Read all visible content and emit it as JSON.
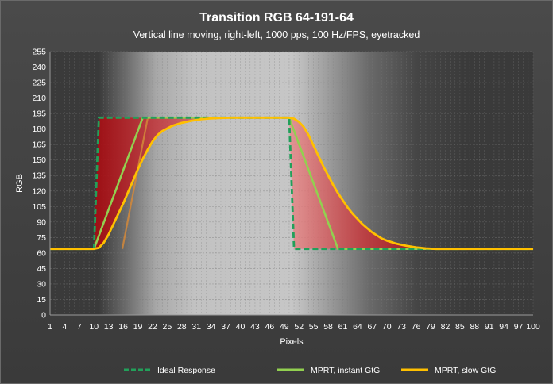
{
  "chart_data": {
    "type": "line",
    "title": "Transition RGB 64-191-64",
    "subtitle": "Vertical line moving, right-left, 1000 pps, 100 Hz/FPS, eyetracked",
    "xlabel": "Pixels",
    "ylabel": "RGB",
    "xlim": [
      1,
      100
    ],
    "ylim": [
      0,
      255
    ],
    "y_ticks": [
      "0",
      "15",
      "30",
      "45",
      "60",
      "75",
      "90",
      "105",
      "120",
      "135",
      "150",
      "165",
      "180",
      "195",
      "210",
      "225",
      "240",
      "255"
    ],
    "x_ticks": [
      "1",
      "4",
      "7",
      "10",
      "13",
      "16",
      "19",
      "22",
      "25",
      "28",
      "31",
      "34",
      "37",
      "40",
      "43",
      "46",
      "49",
      "52",
      "55",
      "58",
      "61",
      "64",
      "67",
      "70",
      "73",
      "76",
      "79",
      "82",
      "85",
      "88",
      "91",
      "94",
      "97",
      "100"
    ],
    "grid": true,
    "series": [
      {
        "name": "Ideal Response",
        "color": "#22a05a",
        "style": "dashed",
        "x": [
          1,
          10,
          11,
          50,
          51,
          100
        ],
        "y": [
          64,
          64,
          191,
          191,
          64,
          64
        ]
      },
      {
        "name": "MPRT, instant GtG",
        "color": "#92d050",
        "style": "solid",
        "x": [
          1,
          10,
          20,
          50,
          60,
          100
        ],
        "y": [
          64,
          64,
          191,
          191,
          64,
          64
        ]
      },
      {
        "name": "MPRT, slow GtG",
        "color": "#ffc000",
        "style": "solid",
        "x": [
          1,
          10,
          11,
          12,
          13,
          14,
          15,
          16,
          17,
          18,
          19,
          20,
          21,
          22,
          23,
          24,
          26,
          28,
          30,
          32,
          34,
          36,
          38,
          40,
          50,
          51,
          52,
          53,
          54,
          55,
          56,
          57,
          58,
          59,
          60,
          61,
          62,
          63,
          64,
          65,
          66,
          67,
          68,
          69,
          70,
          72,
          74,
          76,
          78,
          80,
          100
        ],
        "y": [
          64,
          64,
          65,
          70,
          78,
          88,
          98,
          108,
          119,
          130,
          141,
          151,
          160,
          168,
          174,
          178,
          183,
          186,
          188,
          189.5,
          190.3,
          190.7,
          191,
          191,
          191,
          190,
          187,
          182,
          174,
          164,
          154,
          144,
          135,
          126,
          118,
          111,
          104,
          98,
          93,
          88,
          84,
          80,
          77,
          74,
          72,
          69,
          67,
          65.5,
          64.5,
          64,
          64
        ]
      }
    ],
    "legend_position": "bottom"
  }
}
